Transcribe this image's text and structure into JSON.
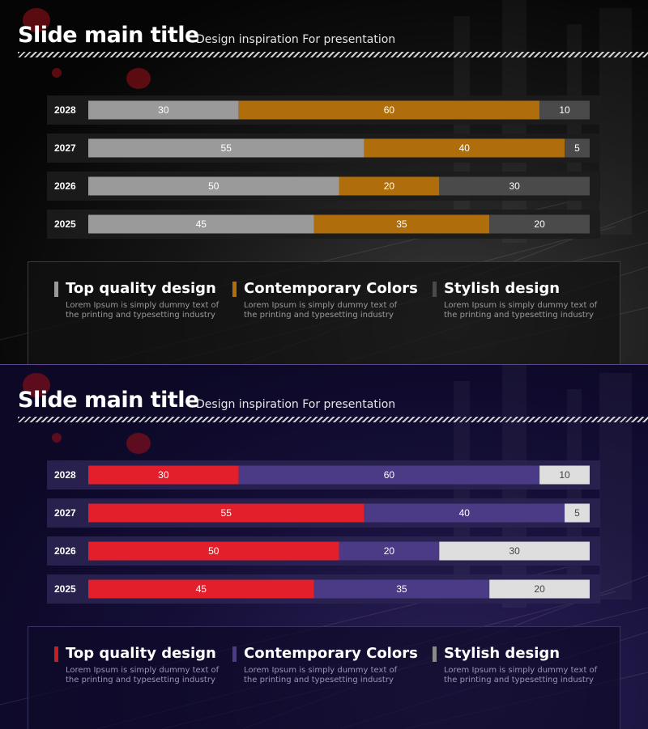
{
  "slides": [
    {
      "title": "Slide main title",
      "subtitle": "Design inspiration For presentation",
      "theme": {
        "row_bg": "#1c1c1c",
        "series_colors": [
          "#9a9a9a",
          "#b06d0c",
          "#4a4a4a"
        ],
        "label_colors": [
          "#ffffff",
          "#ffffff",
          "#ffffff"
        ]
      },
      "legend": [
        {
          "title": "Top quality design",
          "desc": "Lorem Ipsum is simply dummy text of the printing and typesetting industry",
          "color": "#9a9a9a"
        },
        {
          "title": "Contemporary Colors",
          "desc": "Lorem Ipsum is simply dummy text of the printing and typesetting industry",
          "color": "#b06d0c"
        },
        {
          "title": "Stylish design",
          "desc": "Lorem Ipsum is simply dummy text of the printing and typesetting industry",
          "color": "#4a4a4a"
        }
      ]
    },
    {
      "title": "Slide main title",
      "subtitle": "Design inspiration For presentation",
      "theme": {
        "row_bg": "#2a2350",
        "series_colors": [
          "#e21f2a",
          "#4b3a85",
          "#dedede"
        ],
        "label_colors": [
          "#ffffff",
          "#ffffff",
          "#444444"
        ]
      },
      "legend": [
        {
          "title": "Top quality design",
          "desc": "Lorem Ipsum is simply dummy text of the printing and typesetting industry",
          "color": "#c81c24"
        },
        {
          "title": "Contemporary Colors",
          "desc": "Lorem Ipsum is simply dummy text of the printing and typesetting industry",
          "color": "#4b3a85"
        },
        {
          "title": "Stylish design",
          "desc": "Lorem Ipsum is simply dummy text of the printing and typesetting industry",
          "color": "#8a8a8a"
        }
      ]
    }
  ],
  "chart_data": [
    {
      "type": "bar",
      "orientation": "horizontal",
      "stacked": true,
      "categories": [
        "2028",
        "2027",
        "2026",
        "2025"
      ],
      "series": [
        {
          "name": "Top quality design",
          "values": [
            30,
            55,
            50,
            45
          ]
        },
        {
          "name": "Contemporary Colors",
          "values": [
            60,
            40,
            20,
            35
          ]
        },
        {
          "name": "Stylish design",
          "values": [
            10,
            5,
            30,
            20
          ]
        }
      ],
      "xlim": [
        0,
        100
      ],
      "title": "",
      "xlabel": "",
      "ylabel": ""
    },
    {
      "type": "bar",
      "orientation": "horizontal",
      "stacked": true,
      "categories": [
        "2028",
        "2027",
        "2026",
        "2025"
      ],
      "series": [
        {
          "name": "Top quality design",
          "values": [
            30,
            55,
            50,
            45
          ]
        },
        {
          "name": "Contemporary Colors",
          "values": [
            60,
            40,
            20,
            35
          ]
        },
        {
          "name": "Stylish design",
          "values": [
            10,
            5,
            30,
            20
          ]
        }
      ],
      "xlim": [
        0,
        100
      ],
      "title": "",
      "xlabel": "",
      "ylabel": ""
    }
  ]
}
